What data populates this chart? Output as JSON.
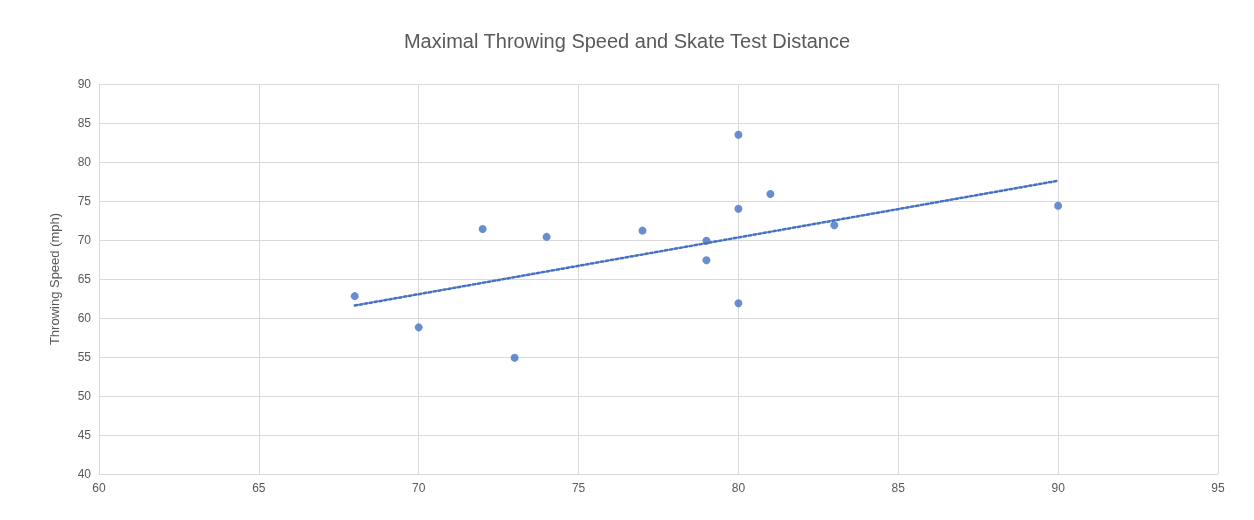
{
  "chart_data": {
    "type": "scatter",
    "title": "Maximal Throwing Speed and Skate Test Distance",
    "ylabel": "Throwing Speed (mph)",
    "xlim": [
      60,
      95
    ],
    "xticks": [
      60,
      65,
      70,
      75,
      80,
      85,
      90,
      95
    ],
    "ylim": [
      40,
      90
    ],
    "yticks": [
      40,
      45,
      50,
      55,
      60,
      65,
      70,
      75,
      80,
      85,
      90
    ],
    "grid": true,
    "series": [
      {
        "color": "#4472c4",
        "marker": "circle",
        "x": [
          68,
          70,
          72,
          73,
          74,
          77,
          79,
          79,
          80,
          80,
          80,
          81,
          83,
          90
        ],
        "values": [
          62.8,
          58.8,
          71.4,
          54.9,
          70.4,
          71.2,
          69.9,
          67.4,
          83.5,
          74,
          61.9,
          75.9,
          71.9,
          74.4
        ]
      },
      {
        "type": "line",
        "color": "#4472c4",
        "line_style": "dotted",
        "marker": "none",
        "x": [
          68,
          90
        ],
        "values": [
          61.6,
          77.6
        ]
      }
    ]
  }
}
